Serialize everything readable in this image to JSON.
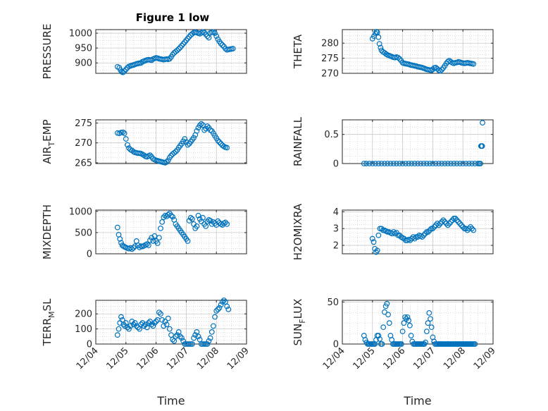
{
  "figure": {
    "title": "Figure 1 low"
  },
  "colors": {
    "marker": "#0072BD",
    "axis": "#262626",
    "grid": "#c8c8c8"
  },
  "chart_data": [
    {
      "id": "pressure",
      "type": "scatter",
      "ylabel": "PRESSURE",
      "ylim": [
        865,
        1012
      ],
      "yticks": [
        900,
        950,
        1000
      ],
      "xlim": [
        4,
        9
      ],
      "xticks": [
        4,
        5,
        6,
        7,
        8,
        9
      ],
      "xticklabels": [
        "12/04",
        "12/05",
        "12/06",
        "12/07",
        "12/08",
        "12/09"
      ],
      "xlabel": "",
      "x": [
        4.72,
        4.78,
        4.82,
        4.86,
        4.9,
        4.95,
        5.0,
        5.05,
        5.1,
        5.15,
        5.2,
        5.25,
        5.3,
        5.35,
        5.4,
        5.45,
        5.5,
        5.55,
        5.6,
        5.65,
        5.7,
        5.75,
        5.8,
        5.85,
        5.9,
        5.95,
        6.0,
        6.05,
        6.1,
        6.15,
        6.2,
        6.25,
        6.3,
        6.35,
        6.4,
        6.45,
        6.5,
        6.55,
        6.6,
        6.65,
        6.7,
        6.75,
        6.8,
        6.85,
        6.9,
        6.95,
        7.0,
        7.05,
        7.1,
        7.15,
        7.2,
        7.25,
        7.3,
        7.35,
        7.4,
        7.45,
        7.5,
        7.55,
        7.6,
        7.65,
        7.7,
        7.75,
        7.8,
        7.85,
        7.9,
        7.95,
        8.0,
        8.05,
        8.1,
        8.15,
        8.2,
        8.25,
        8.3,
        8.35,
        8.4,
        8.45,
        8.5,
        8.55
      ],
      "y": [
        887,
        884,
        876,
        870,
        868,
        872,
        878,
        884,
        888,
        890,
        892,
        893,
        895,
        897,
        898,
        899,
        900,
        904,
        906,
        908,
        910,
        911,
        910,
        909,
        913,
        915,
        917,
        916,
        914,
        913,
        912,
        911,
        912,
        913,
        912,
        914,
        920,
        928,
        934,
        938,
        942,
        947,
        952,
        958,
        964,
        970,
        976,
        982,
        988,
        994,
        998,
        1002,
        1003,
        1002,
        1000,
        998,
        1001,
        1004,
        1002,
        996,
        990,
        985,
        1001,
        1003,
        1004,
        1000,
        990,
        980,
        972,
        965,
        960,
        955,
        948,
        944,
        945,
        946,
        947,
        948
      ]
    },
    {
      "id": "theta",
      "type": "scatter",
      "ylabel": "THETA",
      "ylim": [
        270,
        284.5
      ],
      "yticks": [
        270,
        275,
        280
      ],
      "xlim": [
        4,
        9
      ],
      "xticks": [
        4,
        5,
        6,
        7,
        8,
        9
      ],
      "xticklabels": [
        "12/04",
        "12/05",
        "12/06",
        "12/07",
        "12/08",
        "12/09"
      ],
      "xlabel": "",
      "x": [
        5.0,
        5.05,
        5.1,
        5.13,
        5.16,
        5.2,
        5.23,
        5.27,
        5.3,
        5.35,
        5.4,
        5.45,
        5.5,
        5.55,
        5.6,
        5.65,
        5.7,
        5.75,
        5.8,
        5.85,
        5.9,
        5.95,
        6.0,
        6.05,
        6.1,
        6.15,
        6.2,
        6.25,
        6.3,
        6.35,
        6.4,
        6.45,
        6.5,
        6.55,
        6.6,
        6.65,
        6.7,
        6.75,
        6.8,
        6.85,
        6.9,
        6.95,
        7.0,
        7.05,
        7.1,
        7.15,
        7.2,
        7.25,
        7.3,
        7.35,
        7.4,
        7.45,
        7.5,
        7.55,
        7.6,
        7.65,
        7.7,
        7.75,
        7.8,
        7.85,
        7.9,
        7.95,
        8.0,
        8.05,
        8.1,
        8.15,
        8.2,
        8.25,
        8.3,
        8.35
      ],
      "y": [
        281.5,
        282.3,
        283.2,
        283.8,
        283.6,
        282,
        279.8,
        278.5,
        277.6,
        277.1,
        276.8,
        276.4,
        276.1,
        275.9,
        275.7,
        275.5,
        275.3,
        275.2,
        275.4,
        275.2,
        274.8,
        274.2,
        273.5,
        273.3,
        273.2,
        273.1,
        273.0,
        272.8,
        272.7,
        272.6,
        272.5,
        272.4,
        272.2,
        272.1,
        272.0,
        271.9,
        271.7,
        271.5,
        271.3,
        271.2,
        271.1,
        271.0,
        271.3,
        271.8,
        271.9,
        271.5,
        271.0,
        270.8,
        271.2,
        271.8,
        272.5,
        273.3,
        273.9,
        274.2,
        273.8,
        273.5,
        273.3,
        273.5,
        273.6,
        273.8,
        273.7,
        273.5,
        273.4,
        273.3,
        273.4,
        273.5,
        273.4,
        273.3,
        273.2,
        273.1
      ]
    },
    {
      "id": "air_temp",
      "type": "scatter",
      "ylabel": "AIR_TEMP",
      "ylim": [
        264.8,
        275.8
      ],
      "yticks": [
        265,
        270,
        275
      ],
      "xlim": [
        4,
        9
      ],
      "xticks": [
        4,
        5,
        6,
        7,
        8,
        9
      ],
      "xticklabels": [
        "12/04",
        "12/05",
        "12/06",
        "12/07",
        "12/08",
        "12/09"
      ],
      "xlabel": "",
      "x": [
        4.72,
        4.78,
        4.84,
        4.9,
        4.95,
        5.0,
        5.05,
        5.1,
        5.15,
        5.2,
        5.25,
        5.3,
        5.35,
        5.4,
        5.45,
        5.5,
        5.55,
        5.6,
        5.65,
        5.7,
        5.75,
        5.8,
        5.85,
        5.9,
        5.95,
        6.0,
        6.05,
        6.1,
        6.15,
        6.2,
        6.25,
        6.3,
        6.35,
        6.4,
        6.45,
        6.5,
        6.55,
        6.6,
        6.65,
        6.7,
        6.75,
        6.8,
        6.85,
        6.9,
        6.95,
        7.0,
        7.05,
        7.1,
        7.15,
        7.2,
        7.25,
        7.3,
        7.35,
        7.4,
        7.45,
        7.5,
        7.55,
        7.6,
        7.65,
        7.7,
        7.75,
        7.8,
        7.85,
        7.9,
        7.95,
        8.0,
        8.05,
        8.1,
        8.15,
        8.2,
        8.25,
        8.3,
        8.35
      ],
      "y": [
        272.5,
        272.4,
        272.6,
        272.7,
        272.4,
        271,
        269.5,
        268.7,
        268.3,
        268.1,
        267.8,
        267.6,
        267.5,
        267.4,
        267.4,
        267.3,
        267.1,
        266.9,
        266.6,
        266.5,
        266.7,
        266.9,
        266.5,
        266.0,
        265.8,
        265.6,
        265.5,
        265.4,
        265.3,
        265.2,
        265.1,
        265.0,
        265.2,
        265.6,
        266.3,
        266.8,
        267.2,
        267.5,
        267.8,
        268.2,
        268.8,
        269.3,
        269.8,
        270.4,
        271.0,
        270.2,
        269.5,
        269.8,
        270.3,
        270.8,
        271.3,
        272.0,
        273.0,
        273.8,
        274.4,
        274.8,
        274.5,
        273.2,
        273.6,
        274.2,
        273.8,
        273.2,
        273.0,
        272.4,
        271.8,
        271.2,
        270.6,
        270.2,
        269.8,
        269.4,
        269.1,
        268.9,
        268.8
      ]
    },
    {
      "id": "rainfall",
      "type": "scatter",
      "ylabel": "RAINFALL",
      "ylim": [
        0,
        0.75
      ],
      "yticks": [
        0,
        0.5
      ],
      "xlim": [
        4,
        9
      ],
      "xticks": [
        4,
        5,
        6,
        7,
        8,
        9
      ],
      "xticklabels": [
        "12/04",
        "12/05",
        "12/06",
        "12/07",
        "12/08",
        "12/09"
      ],
      "xlabel": "",
      "x": [
        4.72,
        4.8,
        4.9,
        5.0,
        5.1,
        5.2,
        5.3,
        5.4,
        5.5,
        5.6,
        5.7,
        5.8,
        5.9,
        6.0,
        6.1,
        6.2,
        6.3,
        6.4,
        6.5,
        6.6,
        6.7,
        6.8,
        6.9,
        7.0,
        7.1,
        7.2,
        7.3,
        7.4,
        7.5,
        7.6,
        7.7,
        7.8,
        7.9,
        8.0,
        8.1,
        8.2,
        8.3,
        8.4,
        8.5,
        8.55,
        8.58,
        8.6,
        8.62,
        8.64,
        8.65
      ],
      "y": [
        0,
        0,
        0,
        0,
        0,
        0,
        0,
        0,
        0,
        0,
        0,
        0,
        0,
        0,
        0,
        0,
        0,
        0,
        0,
        0,
        0,
        0,
        0,
        0,
        0,
        0,
        0,
        0,
        0,
        0,
        0,
        0,
        0,
        0,
        0,
        0,
        0,
        0,
        0,
        0,
        0,
        0.3,
        0.3,
        0.3,
        0.7
      ]
    },
    {
      "id": "mixdepth",
      "type": "scatter",
      "ylabel": "MIXDEPTH",
      "ylim": [
        0,
        1030
      ],
      "yticks": [
        0,
        500,
        1000
      ],
      "xlim": [
        4,
        9
      ],
      "xticks": [
        4,
        5,
        6,
        7,
        8,
        9
      ],
      "xticklabels": [
        "12/04",
        "12/05",
        "12/06",
        "12/07",
        "12/08",
        "12/09"
      ],
      "xlabel": "",
      "x": [
        4.72,
        4.76,
        4.8,
        4.84,
        4.88,
        4.92,
        4.96,
        5.0,
        5.05,
        5.1,
        5.15,
        5.2,
        5.25,
        5.3,
        5.35,
        5.4,
        5.45,
        5.5,
        5.55,
        5.6,
        5.65,
        5.7,
        5.75,
        5.8,
        5.85,
        5.9,
        5.95,
        6.0,
        6.05,
        6.1,
        6.15,
        6.2,
        6.25,
        6.3,
        6.35,
        6.4,
        6.45,
        6.5,
        6.55,
        6.6,
        6.65,
        6.7,
        6.75,
        6.8,
        6.85,
        6.9,
        6.95,
        7.0,
        7.05,
        7.1,
        7.15,
        7.2,
        7.25,
        7.3,
        7.35,
        7.4,
        7.45,
        7.5,
        7.55,
        7.6,
        7.65,
        7.7,
        7.75,
        7.8,
        7.85,
        7.9,
        7.95,
        8.0,
        8.05,
        8.1,
        8.15,
        8.2,
        8.25,
        8.3,
        8.35
      ],
      "y": [
        620,
        450,
        350,
        260,
        200,
        180,
        160,
        150,
        130,
        120,
        140,
        110,
        140,
        180,
        300,
        200,
        150,
        180,
        170,
        190,
        210,
        230,
        200,
        320,
        380,
        300,
        420,
        300,
        250,
        380,
        600,
        750,
        860,
        900,
        880,
        920,
        950,
        900,
        870,
        800,
        700,
        650,
        600,
        550,
        500,
        450,
        400,
        350,
        300,
        780,
        850,
        820,
        700,
        600,
        650,
        900,
        820,
        760,
        850,
        700,
        650,
        760,
        800,
        780,
        700,
        750,
        720,
        680,
        770,
        730,
        700,
        680,
        720,
        740,
        700
      ]
    },
    {
      "id": "h2omixra",
      "type": "scatter",
      "ylabel": "H2OMIXRA",
      "ylim": [
        1.5,
        4.1
      ],
      "yticks": [
        2,
        3,
        4
      ],
      "xlim": [
        4,
        9
      ],
      "xticks": [
        4,
        5,
        6,
        7,
        8,
        9
      ],
      "xticklabels": [
        "12/04",
        "12/05",
        "12/06",
        "12/07",
        "12/08",
        "12/09"
      ],
      "xlabel": "",
      "x": [
        5.0,
        5.04,
        5.08,
        5.12,
        5.16,
        5.2,
        5.25,
        5.3,
        5.35,
        5.4,
        5.45,
        5.5,
        5.55,
        5.6,
        5.65,
        5.7,
        5.75,
        5.8,
        5.85,
        5.9,
        5.95,
        6.0,
        6.05,
        6.1,
        6.15,
        6.2,
        6.25,
        6.3,
        6.35,
        6.4,
        6.45,
        6.5,
        6.55,
        6.6,
        6.65,
        6.7,
        6.75,
        6.8,
        6.85,
        6.9,
        6.95,
        7.0,
        7.05,
        7.1,
        7.15,
        7.2,
        7.25,
        7.3,
        7.35,
        7.4,
        7.45,
        7.5,
        7.55,
        7.6,
        7.65,
        7.7,
        7.75,
        7.8,
        7.85,
        7.9,
        7.95,
        8.0,
        8.05,
        8.1,
        8.15,
        8.2,
        8.25,
        8.3,
        8.35
      ],
      "y": [
        2.4,
        2.2,
        1.8,
        1.6,
        1.7,
        2.6,
        3.0,
        3.0,
        2.9,
        2.9,
        2.85,
        2.8,
        2.8,
        2.75,
        2.7,
        2.8,
        2.7,
        2.75,
        2.6,
        2.6,
        2.5,
        2.45,
        2.4,
        2.3,
        2.3,
        2.35,
        2.3,
        2.4,
        2.5,
        2.4,
        2.5,
        2.5,
        2.6,
        2.55,
        2.5,
        2.6,
        2.7,
        2.8,
        2.8,
        2.9,
        3.0,
        3.0,
        3.1,
        3.2,
        3.3,
        3.2,
        3.3,
        3.4,
        3.5,
        3.4,
        3.3,
        3.2,
        3.3,
        3.4,
        3.5,
        3.6,
        3.6,
        3.5,
        3.4,
        3.3,
        3.2,
        3.1,
        3.0,
        3.0,
        2.9,
        3.0,
        3.1,
        3.0,
        2.9
      ]
    },
    {
      "id": "terr_msl",
      "type": "scatter",
      "ylabel": "TERR_MSL",
      "ylim": [
        0,
        290
      ],
      "yticks": [
        0,
        100,
        200
      ],
      "xlim": [
        4,
        9
      ],
      "xticks": [
        4,
        5,
        6,
        7,
        8,
        9
      ],
      "xticklabels": [
        "12/04",
        "12/05",
        "12/06",
        "12/07",
        "12/08",
        "12/09"
      ],
      "xlabel": "Time",
      "x": [
        4.72,
        4.76,
        4.8,
        4.84,
        4.88,
        4.92,
        4.96,
        5.0,
        5.05,
        5.1,
        5.15,
        5.2,
        5.25,
        5.3,
        5.35,
        5.4,
        5.45,
        5.5,
        5.55,
        5.6,
        5.65,
        5.7,
        5.75,
        5.8,
        5.85,
        5.9,
        5.95,
        6.0,
        6.05,
        6.1,
        6.15,
        6.2,
        6.25,
        6.3,
        6.35,
        6.4,
        6.45,
        6.5,
        6.55,
        6.6,
        6.65,
        6.7,
        6.75,
        6.8,
        6.85,
        6.9,
        6.95,
        7.0,
        7.05,
        7.1,
        7.15,
        7.2,
        7.25,
        7.3,
        7.35,
        7.4,
        7.45,
        7.5,
        7.55,
        7.6,
        7.65,
        7.7,
        7.75,
        7.8,
        7.85,
        7.9,
        7.95,
        8.0,
        8.05,
        8.1,
        8.15,
        8.2,
        8.25,
        8.3,
        8.35,
        8.4
      ],
      "y": [
        60,
        100,
        140,
        180,
        160,
        130,
        120,
        140,
        110,
        100,
        120,
        150,
        130,
        140,
        120,
        110,
        100,
        130,
        140,
        120,
        130,
        110,
        140,
        150,
        130,
        120,
        140,
        150,
        160,
        210,
        200,
        160,
        120,
        150,
        130,
        170,
        100,
        60,
        30,
        20,
        50,
        60,
        80,
        50,
        40,
        20,
        0,
        0,
        0,
        0,
        0,
        0,
        40,
        60,
        80,
        50,
        30,
        0,
        0,
        0,
        0,
        0,
        20,
        40,
        80,
        120,
        180,
        220,
        230,
        240,
        260,
        280,
        290,
        280,
        250,
        230
      ]
    },
    {
      "id": "sun_flux",
      "type": "scatter",
      "ylabel": "SUN_FLUX",
      "ylim": [
        0,
        52
      ],
      "yticks": [
        0,
        50
      ],
      "xlim": [
        4,
        9
      ],
      "xticks": [
        4,
        5,
        6,
        7,
        8,
        9
      ],
      "xticklabels": [
        "12/04",
        "12/05",
        "12/06",
        "12/07",
        "12/08",
        "12/09"
      ],
      "xlabel": "Time",
      "x": [
        4.72,
        4.76,
        4.8,
        4.84,
        4.88,
        4.92,
        4.96,
        5.0,
        5.04,
        5.08,
        5.12,
        5.16,
        5.2,
        5.24,
        5.28,
        5.32,
        5.36,
        5.4,
        5.44,
        5.48,
        5.52,
        5.56,
        5.6,
        5.64,
        5.68,
        5.72,
        5.76,
        5.8,
        5.84,
        5.88,
        5.92,
        5.96,
        6.0,
        6.04,
        6.08,
        6.12,
        6.16,
        6.2,
        6.24,
        6.28,
        6.32,
        6.36,
        6.4,
        6.44,
        6.48,
        6.52,
        6.56,
        6.6,
        6.64,
        6.68,
        6.72,
        6.76,
        6.8,
        6.84,
        6.88,
        6.92,
        6.96,
        7.0,
        7.04,
        7.08,
        7.12,
        7.16,
        7.2,
        7.24,
        7.28,
        7.32,
        7.36,
        7.4,
        7.44,
        7.48,
        7.52,
        7.56,
        7.6,
        7.64,
        7.68,
        7.72,
        7.76,
        7.8,
        7.84,
        7.88,
        7.92,
        7.96,
        8.0,
        8.04,
        8.08,
        8.12,
        8.16,
        8.2,
        8.24,
        8.28,
        8.32,
        8.36,
        8.4
      ],
      "y": [
        10,
        5,
        2,
        0,
        0,
        0,
        0,
        0,
        0,
        0,
        5,
        10,
        10,
        6,
        0,
        0,
        20,
        38,
        45,
        48,
        35,
        25,
        10,
        5,
        0,
        0,
        0,
        0,
        0,
        0,
        0,
        0,
        15,
        25,
        32,
        30,
        32,
        28,
        22,
        10,
        3,
        0,
        0,
        0,
        0,
        0,
        0,
        0,
        0,
        0,
        0,
        2,
        15,
        25,
        37,
        30,
        20,
        8,
        3,
        0,
        0,
        0,
        0,
        0,
        0,
        0,
        0,
        0,
        0,
        0,
        0,
        0,
        0,
        0,
        0,
        0,
        0,
        0,
        0,
        0,
        0,
        0,
        0,
        0,
        0,
        0,
        0,
        0,
        0,
        0,
        0,
        0,
        0
      ]
    }
  ]
}
